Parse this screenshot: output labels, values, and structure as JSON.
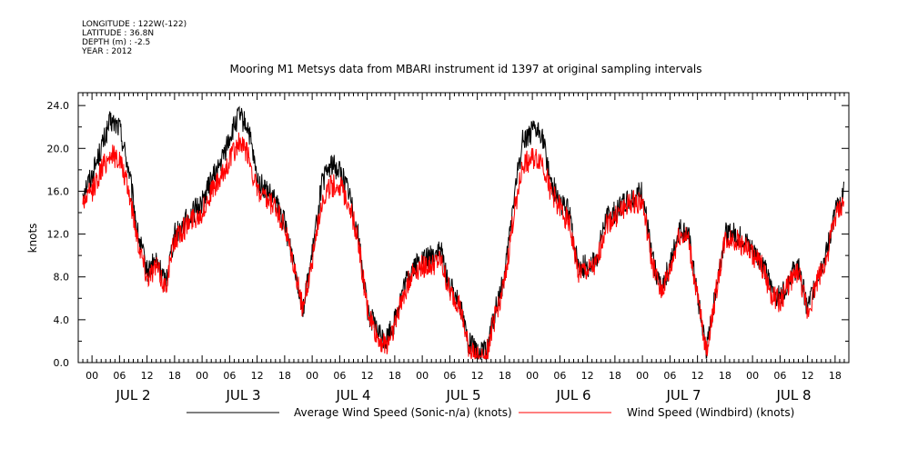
{
  "metadata": {
    "longitude": "LONGITUDE : 122W(-122)",
    "latitude": "LATITUDE : 36.8N",
    "depth": "DEPTH (m) : -2.5",
    "year": "YEAR : 2012"
  },
  "chart_data": {
    "type": "line",
    "title": "Mooring M1 Metsys data from MBARI instrument id 1397 at original sampling intervals",
    "xlabel": "",
    "ylabel": "knots",
    "ylim": [
      0,
      25.2
    ],
    "xlim_hours": [
      -3,
      165
    ],
    "y_ticks": [
      "0.0",
      "4.0",
      "8.0",
      "12.0",
      "16.0",
      "20.0",
      "24.0"
    ],
    "x_hour_ticks": [
      "00",
      "06",
      "12",
      "18",
      "00",
      "06",
      "12",
      "18",
      "00",
      "06",
      "12",
      "18",
      "00",
      "06",
      "12",
      "18",
      "00",
      "06",
      "12",
      "18",
      "00",
      "06",
      "12",
      "18",
      "00",
      "06",
      "12",
      "18"
    ],
    "day_labels": [
      "JUL 2",
      "JUL 3",
      "JUL 4",
      "JUL 5",
      "JUL 6",
      "JUL 7",
      "JUL 8"
    ],
    "grid": false,
    "legend_position": "bottom",
    "series": [
      {
        "name": "Average Wind Speed (Sonic-n/a) (knots)",
        "color": "#000000",
        "x_hours": [
          -2,
          0,
          2,
          4,
          6,
          8,
          10,
          12,
          14,
          16,
          18,
          20,
          22,
          24,
          26,
          28,
          30,
          32,
          34,
          36,
          38,
          40,
          42,
          44,
          46,
          48,
          50,
          52,
          54,
          56,
          58,
          60,
          62,
          64,
          66,
          68,
          70,
          72,
          74,
          76,
          78,
          80,
          82,
          84,
          86,
          88,
          90,
          92,
          94,
          96,
          98,
          100,
          102,
          104,
          106,
          108,
          110,
          112,
          114,
          116,
          118,
          120,
          122,
          124,
          126,
          128,
          130,
          132,
          134,
          136,
          138,
          140,
          142,
          144,
          146,
          148,
          150,
          152,
          154,
          156,
          158,
          160,
          162,
          164
        ],
        "values": [
          16,
          17.5,
          20,
          22.5,
          22,
          18,
          12,
          8.5,
          9.5,
          7.5,
          12,
          13,
          14,
          15,
          17,
          18.5,
          21,
          23,
          22,
          17,
          16,
          15,
          13,
          9.5,
          5,
          10,
          16.5,
          18.5,
          18,
          16,
          12,
          5,
          3,
          2,
          4,
          7,
          9,
          9.5,
          10,
          10.5,
          7,
          6,
          2,
          0.8,
          1,
          5,
          8,
          15.5,
          21,
          21.5,
          21.5,
          17,
          15,
          14,
          9,
          9,
          9.5,
          13.5,
          14,
          15,
          15.5,
          16,
          10,
          7,
          9,
          12.5,
          12,
          6,
          1,
          7,
          12,
          12,
          11.5,
          10.5,
          9.5,
          7,
          6,
          8,
          9,
          5,
          8,
          10,
          14,
          16
        ]
      },
      {
        "name": "Wind Speed (Windbird) (knots)",
        "color": "#ff0000",
        "x_hours": [
          -2,
          0,
          2,
          4,
          6,
          8,
          10,
          12,
          14,
          16,
          18,
          20,
          22,
          24,
          26,
          28,
          30,
          32,
          34,
          36,
          38,
          40,
          42,
          44,
          46,
          48,
          50,
          52,
          54,
          56,
          58,
          60,
          62,
          64,
          66,
          68,
          70,
          72,
          74,
          76,
          78,
          80,
          82,
          84,
          86,
          88,
          90,
          92,
          94,
          96,
          98,
          100,
          102,
          104,
          106,
          108,
          110,
          112,
          114,
          116,
          118,
          120,
          122,
          124,
          126,
          128,
          130,
          132,
          134,
          136,
          138,
          140,
          142,
          144,
          146,
          148,
          150,
          152,
          154,
          156,
          158,
          160,
          162,
          164
        ],
        "values": [
          15,
          16,
          18,
          19.5,
          19,
          16,
          11.5,
          8,
          9,
          7,
          11.5,
          12.5,
          13.5,
          14,
          16,
          17,
          19,
          20.5,
          19.5,
          16,
          15,
          14.5,
          12.5,
          9,
          5,
          9.5,
          15,
          16.5,
          16.5,
          15,
          11.5,
          5,
          2.5,
          1.5,
          3.5,
          6.5,
          8.5,
          9,
          9,
          9.5,
          6.5,
          5.5,
          1.5,
          0.5,
          0.8,
          4.5,
          7.5,
          14,
          18.5,
          19,
          19,
          16,
          14.5,
          13,
          8.5,
          8.5,
          9,
          13,
          13.5,
          14.5,
          15,
          15,
          9.5,
          6.5,
          8.5,
          12,
          11.5,
          6,
          1,
          6.5,
          11.5,
          11.5,
          11,
          10,
          9,
          6.5,
          5.5,
          7.5,
          8.5,
          4.5,
          7.5,
          9.5,
          13.5,
          15
        ]
      }
    ]
  }
}
